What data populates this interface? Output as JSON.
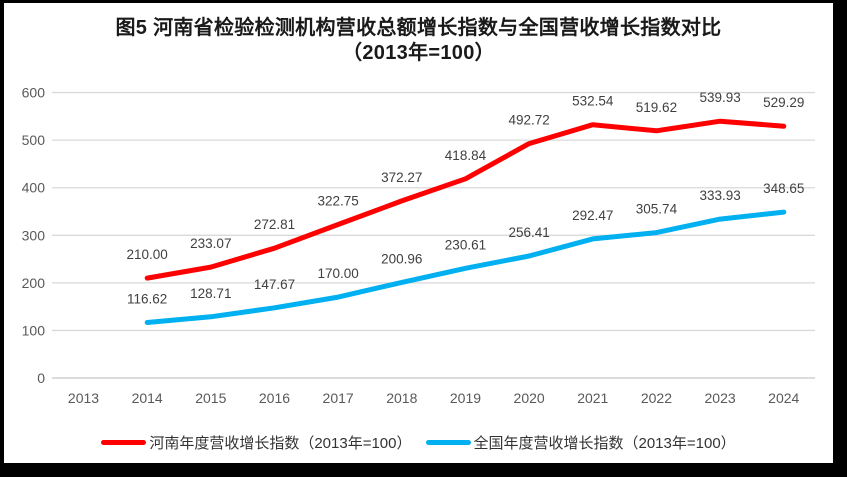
{
  "title": {
    "line1": "图5  河南省检验检测机构营收总额增长指数与全国营收增长指数对比",
    "line2": "（2013年=100）"
  },
  "colors": {
    "henan_line": "#FF0000",
    "national_line": "#00B0F0",
    "gridline": "#D9D9D9",
    "zero_gridline": "#C6C6C6",
    "axis_text": "#595959",
    "data_label_text": "#404040",
    "title_text": "#1A1A1A",
    "frame_border": "#000000"
  },
  "chart_data": {
    "type": "line",
    "title": "图5 河南省检验检测机构营收总额增长指数与全国营收增长指数对比（2013年=100）",
    "x_categories": [
      "2013",
      "2014",
      "2015",
      "2016",
      "2017",
      "2018",
      "2019",
      "2020",
      "2021",
      "2022",
      "2023",
      "2024"
    ],
    "first_data_category": "2014",
    "series": [
      {
        "name": "河南年度营收增长指数（2013年=100）",
        "color": "#FF0000",
        "values": [
          210.0,
          233.07,
          272.81,
          322.75,
          372.27,
          418.84,
          492.72,
          532.54,
          519.62,
          539.93,
          529.29
        ],
        "labels": [
          "210.00",
          "233.07",
          "272.81",
          "322.75",
          "372.27",
          "418.84",
          "492.72",
          "532.54",
          "519.62",
          "539.93",
          "529.29"
        ]
      },
      {
        "name": "全国年度营收增长指数（2013年=100）",
        "color": "#00B0F0",
        "values": [
          116.62,
          128.71,
          147.67,
          170.0,
          200.96,
          230.61,
          256.41,
          292.47,
          305.74,
          333.93,
          348.65
        ],
        "labels": [
          "116.62",
          "128.71",
          "147.67",
          "170.00",
          "200.96",
          "230.61",
          "256.41",
          "292.47",
          "305.74",
          "333.93",
          "348.65"
        ]
      }
    ],
    "ylabel": "",
    "xlabel": "",
    "ylim": [
      0,
      600
    ],
    "yticks": [
      "0",
      "100",
      "200",
      "300",
      "400",
      "500",
      "600"
    ],
    "grid": "horizontal",
    "legend_position": "bottom"
  }
}
